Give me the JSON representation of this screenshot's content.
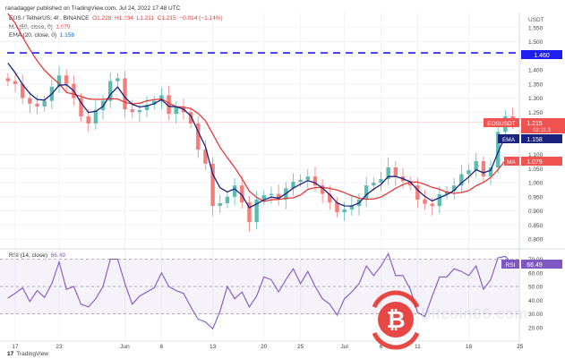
{
  "header": {
    "published": "ranadagger published on TradingView.com, Jul 24, 2022 17:48 UTC",
    "symbol": "EOS / TetherUS, 4h, BINANCE",
    "ohlc": {
      "o": "O1.228",
      "h": "H1.234",
      "l": "L1.211",
      "c": "C1.215",
      "chg": "−0.014 (−1.14%)"
    },
    "ma_label": "MA (50, close, 0)",
    "ma_value": "1.079",
    "ema_label": "EMA (20, close, 0)",
    "ema_value": "1.158",
    "rsi_label": "RSI (14, close)",
    "rsi_value": "66.49"
  },
  "axis": {
    "currency": "USDT",
    "price_ticks": [
      "1.550",
      "1.500",
      "1.400",
      "1.350",
      "1.300",
      "1.250",
      "1.100",
      "1.050",
      "1.000",
      "0.950",
      "0.900",
      "0.850",
      "0.800"
    ],
    "rsi_ticks": [
      "70.00",
      "60.00",
      "50.00",
      "40.00",
      "30.00",
      "20.00"
    ],
    "time_ticks": [
      "17",
      "23",
      "Jun",
      "6",
      "13",
      "20",
      "25",
      "Jul",
      "6",
      "11",
      "18",
      "25"
    ]
  },
  "tags": {
    "symbol": "EOSUSDT",
    "price": "1.215",
    "countdown": "02:11:3",
    "ema": "EMA",
    "ema_value": "1.158",
    "ma": "MA",
    "ma_value": "1.079",
    "resistance": "1.460",
    "rsi": "RSI",
    "rsi_value": "66.49"
  },
  "colors": {
    "up": "#26a69a",
    "down": "#ef5350",
    "ma": "#e53935",
    "ema": "#1a237e",
    "rsi": "#7e57c2",
    "resistance": "#1e1ef0"
  },
  "footer": {
    "brand": "TradingView",
    "watermark": "Bitcoin86.com"
  },
  "chart_data": [
    {
      "type": "candlestick",
      "title": "EOS / TetherUS, 4h, BINANCE",
      "ylabel": "USDT",
      "ylim": [
        0.78,
        1.58
      ],
      "grid": true,
      "horizontal_lines": [
        {
          "value": 1.46,
          "style": "dashed"
        }
      ],
      "indicators": [
        "MA (50, close, 0)",
        "EMA (20, close, 0)"
      ],
      "x": [
        "2022-05-16",
        "2022-05-17",
        "2022-05-18",
        "2022-05-19",
        "2022-05-20",
        "2022-05-21",
        "2022-05-22",
        "2022-05-23",
        "2022-05-24",
        "2022-05-25",
        "2022-05-26",
        "2022-05-27",
        "2022-05-28",
        "2022-05-29",
        "2022-05-30",
        "2022-05-31",
        "2022-06-01",
        "2022-06-02",
        "2022-06-03",
        "2022-06-04",
        "2022-06-05",
        "2022-06-06",
        "2022-06-07",
        "2022-06-08",
        "2022-06-09",
        "2022-06-10",
        "2022-06-11",
        "2022-06-12",
        "2022-06-13",
        "2022-06-14",
        "2022-06-15",
        "2022-06-16",
        "2022-06-17",
        "2022-06-18",
        "2022-06-19",
        "2022-06-20",
        "2022-06-21",
        "2022-06-22",
        "2022-06-23",
        "2022-06-24",
        "2022-06-25",
        "2022-06-26",
        "2022-06-27",
        "2022-06-28",
        "2022-06-29",
        "2022-06-30",
        "2022-07-01",
        "2022-07-02",
        "2022-07-03",
        "2022-07-04",
        "2022-07-05",
        "2022-07-06",
        "2022-07-07",
        "2022-07-08",
        "2022-07-09",
        "2022-07-10",
        "2022-07-11",
        "2022-07-12",
        "2022-07-13",
        "2022-07-14",
        "2022-07-15",
        "2022-07-16",
        "2022-07-17",
        "2022-07-18",
        "2022-07-19",
        "2022-07-20",
        "2022-07-21",
        "2022-07-22",
        "2022-07-23",
        "2022-07-24"
      ],
      "close": [
        1.36,
        1.35,
        1.3,
        1.28,
        1.27,
        1.29,
        1.34,
        1.38,
        1.35,
        1.3,
        1.235,
        1.21,
        1.257,
        1.29,
        1.36,
        1.37,
        1.26,
        1.25,
        1.257,
        1.276,
        1.29,
        1.31,
        1.244,
        1.267,
        1.25,
        1.21,
        1.117,
        1.067,
        0.917,
        0.927,
        0.95,
        0.99,
        0.93,
        0.86,
        0.94,
        0.955,
        0.96,
        0.94,
        0.98,
        1.003,
        1.01,
        1.022,
        0.99,
        0.96,
        0.93,
        0.895,
        0.905,
        0.917,
        0.94,
        0.99,
        1.0,
        1.013,
        1.054,
        1.022,
        1.005,
        0.99,
        0.94,
        0.925,
        0.917,
        0.959,
        0.97,
        0.99,
        1.03,
        1.044,
        1.076,
        1.022,
        1.054,
        1.18,
        1.235,
        1.215
      ],
      "last": {
        "open": 1.228,
        "high": 1.234,
        "low": 1.211,
        "close": 1.215,
        "ma": 1.079,
        "ema": 1.158
      }
    },
    {
      "type": "line",
      "title": "RSI (14, close)",
      "ylim": [
        10,
        80
      ],
      "band": [
        30,
        70
      ],
      "levels": [
        70,
        50,
        30
      ],
      "values": [
        41.5,
        45,
        49,
        39,
        47,
        42,
        52,
        68,
        48,
        50,
        37,
        35,
        41,
        50,
        70,
        70,
        52,
        37,
        43,
        46,
        49,
        60,
        50,
        47,
        45,
        35,
        26,
        24,
        19,
        32,
        50,
        41,
        46,
        35,
        43,
        57,
        55,
        46,
        55,
        63,
        52,
        61,
        50,
        41,
        37,
        29,
        41,
        46,
        52,
        65,
        58,
        65,
        74,
        58,
        58,
        48,
        31,
        28,
        43,
        57,
        57,
        63,
        61,
        58,
        65,
        48,
        55,
        71,
        72,
        66.49
      ]
    }
  ]
}
